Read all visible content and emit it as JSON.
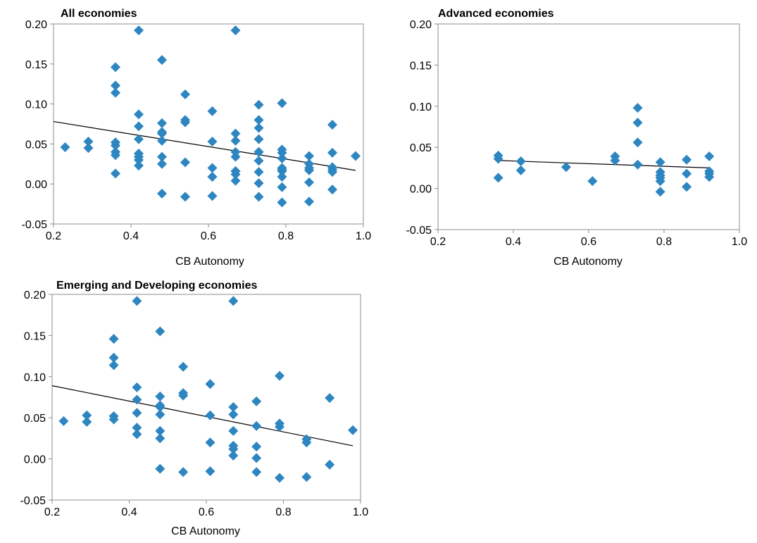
{
  "chart_data": [
    {
      "type": "scatter",
      "title": "All economies",
      "xlabel": "CB Autonomy",
      "ylabel": "",
      "xlim": [
        0.2,
        1.0
      ],
      "ylim": [
        -0.05,
        0.2
      ],
      "xticks": [
        "0.2",
        "0.4",
        "0.6",
        "0.8",
        "1.0"
      ],
      "yticks": [
        "0.20",
        "0.15",
        "0.10",
        "0.05",
        "0.00",
        "-0.05"
      ],
      "marker_color": "#2E86C1",
      "trendline": [
        [
          0.2,
          0.078
        ],
        [
          0.98,
          0.017
        ]
      ],
      "grid": false,
      "x": [
        0.23,
        0.29,
        0.29,
        0.36,
        0.36,
        0.36,
        0.36,
        0.36,
        0.36,
        0.36,
        0.36,
        0.42,
        0.42,
        0.42,
        0.42,
        0.42,
        0.42,
        0.42,
        0.42,
        0.42,
        0.48,
        0.48,
        0.48,
        0.48,
        0.48,
        0.48,
        0.48,
        0.48,
        0.54,
        0.54,
        0.54,
        0.54,
        0.54,
        0.61,
        0.61,
        0.61,
        0.61,
        0.61,
        0.61,
        0.67,
        0.67,
        0.67,
        0.67,
        0.67,
        0.67,
        0.67,
        0.67,
        0.67,
        0.73,
        0.73,
        0.73,
        0.73,
        0.73,
        0.73,
        0.73,
        0.73,
        0.73,
        0.73,
        0.79,
        0.79,
        0.79,
        0.79,
        0.79,
        0.79,
        0.79,
        0.79,
        0.79,
        0.79,
        0.86,
        0.86,
        0.86,
        0.86,
        0.86,
        0.86,
        0.92,
        0.92,
        0.92,
        0.92,
        0.92,
        0.92,
        0.92,
        0.98
      ],
      "y": [
        0.046,
        0.053,
        0.045,
        0.146,
        0.123,
        0.114,
        0.052,
        0.048,
        0.04,
        0.036,
        0.013,
        0.192,
        0.087,
        0.072,
        0.056,
        0.038,
        0.034,
        0.03,
        0.023,
        0.034,
        0.155,
        0.076,
        0.065,
        0.063,
        0.054,
        0.034,
        0.025,
        -0.012,
        0.112,
        0.08,
        0.077,
        0.027,
        -0.016,
        0.091,
        0.053,
        0.02,
        0.009,
        -0.015,
        0.009,
        0.192,
        0.063,
        0.054,
        0.04,
        0.034,
        0.016,
        0.012,
        0.004,
        0.016,
        0.099,
        0.08,
        0.07,
        0.056,
        0.04,
        0.029,
        0.015,
        0.001,
        -0.016,
        0.04,
        0.101,
        0.043,
        0.039,
        0.032,
        0.02,
        0.016,
        0.009,
        -0.004,
        -0.023,
        0.018,
        0.035,
        0.025,
        0.02,
        0.017,
        0.002,
        -0.022,
        0.074,
        0.039,
        0.021,
        0.018,
        0.015,
        -0.007,
        0.018,
        0.035
      ]
    },
    {
      "type": "scatter",
      "title": "Advanced economies",
      "xlabel": "CB Autonomy",
      "ylabel": "",
      "xlim": [
        0.2,
        1.0
      ],
      "ylim": [
        -0.05,
        0.2
      ],
      "xticks": [
        "0.2",
        "0.4",
        "0.6",
        "0.8",
        "1.0"
      ],
      "yticks": [
        "0.20",
        "0.15",
        "0.10",
        "0.05",
        "0.00",
        "-0.05"
      ],
      "marker_color": "#2E86C1",
      "trendline": [
        [
          0.36,
          0.034
        ],
        [
          0.92,
          0.025
        ]
      ],
      "grid": false,
      "x": [
        0.36,
        0.36,
        0.36,
        0.42,
        0.42,
        0.54,
        0.61,
        0.67,
        0.67,
        0.73,
        0.73,
        0.73,
        0.73,
        0.79,
        0.79,
        0.79,
        0.79,
        0.79,
        0.79,
        0.86,
        0.86,
        0.86,
        0.92,
        0.92,
        0.92,
        0.92
      ],
      "y": [
        0.04,
        0.036,
        0.013,
        0.033,
        0.022,
        0.026,
        0.009,
        0.039,
        0.034,
        0.098,
        0.08,
        0.056,
        0.029,
        0.032,
        0.02,
        0.016,
        0.013,
        0.009,
        -0.004,
        0.035,
        0.018,
        0.002,
        0.039,
        0.021,
        0.018,
        0.014
      ]
    },
    {
      "type": "scatter",
      "title": "Emerging and Developing economies",
      "xlabel": "CB Autonomy",
      "ylabel": "",
      "xlim": [
        0.2,
        1.0
      ],
      "ylim": [
        -0.05,
        0.2
      ],
      "xticks": [
        "0.2",
        "0.4",
        "0.6",
        "0.8",
        "1.0"
      ],
      "yticks": [
        "0.20",
        "0.15",
        "0.10",
        "0.05",
        "0.00",
        "-0.05"
      ],
      "marker_color": "#2E86C1",
      "trendline": [
        [
          0.2,
          0.089
        ],
        [
          0.98,
          0.016
        ]
      ],
      "grid": false,
      "x": [
        0.23,
        0.29,
        0.29,
        0.36,
        0.36,
        0.36,
        0.36,
        0.36,
        0.42,
        0.42,
        0.42,
        0.42,
        0.42,
        0.42,
        0.48,
        0.48,
        0.48,
        0.48,
        0.48,
        0.48,
        0.48,
        0.48,
        0.54,
        0.54,
        0.54,
        0.54,
        0.61,
        0.61,
        0.61,
        0.61,
        0.67,
        0.67,
        0.67,
        0.67,
        0.67,
        0.67,
        0.67,
        0.73,
        0.73,
        0.73,
        0.73,
        0.73,
        0.79,
        0.79,
        0.79,
        0.79,
        0.86,
        0.86,
        0.86,
        0.92,
        0.92,
        0.98
      ],
      "y": [
        0.046,
        0.053,
        0.045,
        0.146,
        0.123,
        0.114,
        0.052,
        0.048,
        0.192,
        0.087,
        0.072,
        0.056,
        0.038,
        0.03,
        0.155,
        0.076,
        0.065,
        0.063,
        0.054,
        0.034,
        0.025,
        -0.012,
        0.112,
        0.08,
        0.077,
        -0.016,
        0.091,
        0.053,
        0.02,
        -0.015,
        0.192,
        0.063,
        0.054,
        0.034,
        0.016,
        0.012,
        0.004,
        0.07,
        0.04,
        0.015,
        0.001,
        -0.016,
        0.101,
        0.043,
        0.039,
        -0.023,
        0.024,
        0.02,
        -0.022,
        0.074,
        -0.007,
        0.035
      ]
    }
  ]
}
